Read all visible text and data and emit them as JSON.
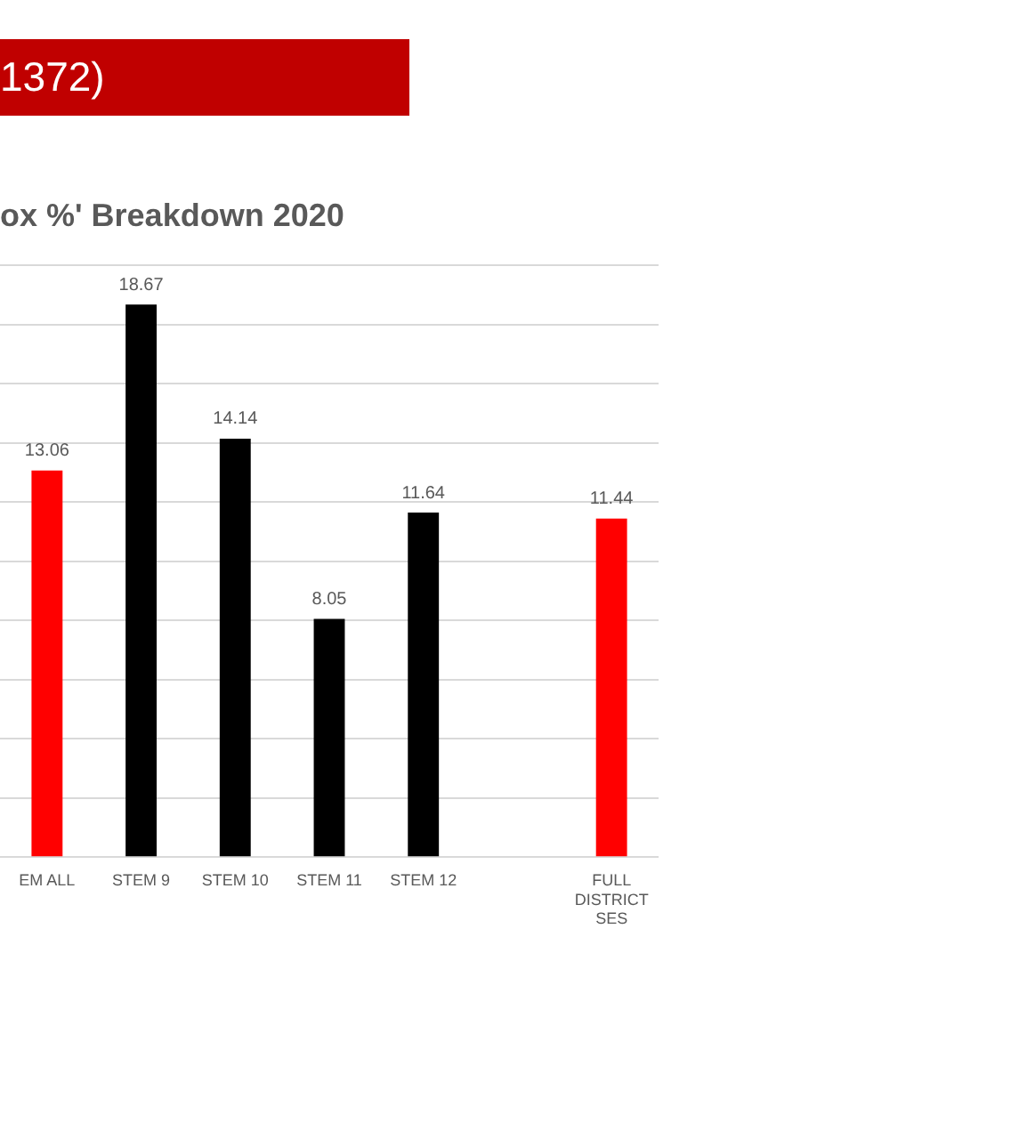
{
  "chart_data": {
    "type": "bar",
    "title": "1372)",
    "subtitle": "ox %' Breakdown 2020",
    "categories": [
      "EM ALL",
      "STEM 9",
      "STEM 10",
      "STEM 11",
      "STEM 12",
      null,
      "FULL DISTRICT SES"
    ],
    "values": [
      13.06,
      18.67,
      14.14,
      8.05,
      11.64,
      null,
      11.44
    ],
    "colors": [
      "#ff0000",
      "#000000",
      "#000000",
      "#000000",
      "#000000",
      null,
      "#ff0000"
    ],
    "ylim": [
      0,
      20
    ],
    "yticks": [
      {
        "value": 0,
        "label": null
      },
      {
        "value": 2,
        "label": null
      },
      {
        "value": 4,
        "label": null
      },
      {
        "value": 6,
        "label": null
      },
      {
        "value": 8,
        "label": null
      },
      {
        "value": 10,
        "label": null
      },
      {
        "value": 12,
        "label": null
      },
      {
        "value": 14,
        "label": null
      },
      {
        "value": 16,
        "label": null
      },
      {
        "value": 18,
        "label": null
      },
      {
        "value": 20,
        "label": null
      }
    ],
    "grid": "y",
    "tick_labels": "x",
    "data_labels": true,
    "legend": false
  }
}
